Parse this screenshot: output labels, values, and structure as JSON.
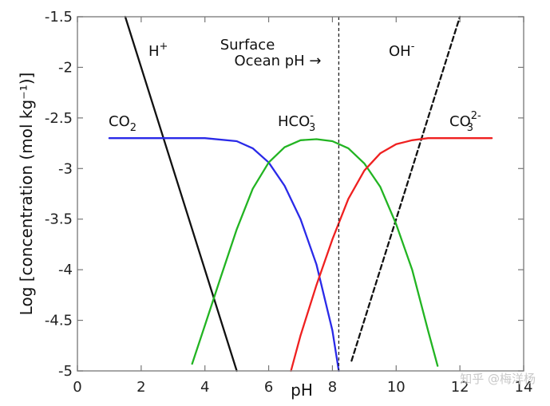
{
  "chart_data": {
    "type": "line",
    "title": "",
    "xlabel": "pH",
    "ylabel": "Log [concentration (mol kg⁻¹)]",
    "xlim": [
      0,
      14
    ],
    "ylim": [
      -5,
      -1.5
    ],
    "xticks": [
      0,
      2,
      4,
      6,
      8,
      10,
      12,
      14
    ],
    "xtick_labels": [
      "0",
      "2",
      "4",
      "6",
      "8",
      "10",
      "12",
      "14"
    ],
    "yticks": [
      -1.5,
      -2,
      -2.5,
      -3,
      -3.5,
      -4,
      -4.5,
      -5
    ],
    "ytick_labels": [
      "-1.5",
      "-2",
      "-2.5",
      "-3",
      "-3.5",
      "-4",
      "-4.5",
      "-5"
    ],
    "grid": false,
    "series": [
      {
        "name": "H⁺",
        "color": "#111111",
        "style": "solid",
        "x": [
          1.5,
          5.0
        ],
        "y": [
          -1.5,
          -5.0
        ]
      },
      {
        "name": "OH⁻",
        "color": "#111111",
        "style": "dashed",
        "x": [
          8.6,
          12.0
        ],
        "y": [
          -4.9,
          -1.5
        ]
      },
      {
        "name": "CO2",
        "color": "#2a2ae8",
        "style": "solid",
        "x": [
          1.0,
          4.0,
          5.0,
          5.5,
          6.0,
          6.5,
          7.0,
          7.5,
          8.0,
          8.2
        ],
        "y": [
          -2.7,
          -2.7,
          -2.73,
          -2.8,
          -2.94,
          -3.17,
          -3.5,
          -3.95,
          -4.6,
          -5.0
        ]
      },
      {
        "name": "HCO3-",
        "color": "#22b422",
        "style": "solid",
        "x": [
          3.6,
          4.0,
          4.5,
          5.0,
          5.5,
          6.0,
          6.5,
          7.0,
          7.5,
          8.0,
          8.5,
          9.0,
          9.5,
          10.0,
          10.5,
          11.0,
          11.3
        ],
        "y": [
          -4.93,
          -4.55,
          -4.07,
          -3.6,
          -3.2,
          -2.94,
          -2.79,
          -2.72,
          -2.71,
          -2.73,
          -2.8,
          -2.95,
          -3.18,
          -3.55,
          -4.0,
          -4.6,
          -4.95
        ]
      },
      {
        "name": "CO3 2-",
        "color": "#ef2020",
        "style": "solid",
        "x": [
          6.7,
          7.0,
          7.5,
          8.0,
          8.5,
          9.0,
          9.5,
          10.0,
          10.5,
          11.0,
          12.0,
          13.0
        ],
        "y": [
          -5.0,
          -4.65,
          -4.15,
          -3.7,
          -3.3,
          -3.02,
          -2.85,
          -2.76,
          -2.72,
          -2.7,
          -2.7,
          -2.7
        ]
      }
    ],
    "vline": {
      "x": 8.2,
      "style": "dashed",
      "color": "#222222"
    },
    "annotations": {
      "co2": {
        "base": "CO",
        "sub": "2",
        "sup": "",
        "color": "#2a2ae8"
      },
      "hco3": {
        "base": "HCO",
        "sub": "3",
        "sup": "-",
        "color": "#22b422"
      },
      "co3": {
        "base": "CO",
        "sub": "3",
        "sup": "2-",
        "color": "#ef2020"
      },
      "h": {
        "base": "H",
        "sup": "+",
        "color": "#111111"
      },
      "oh": {
        "base": "OH",
        "sup": "-",
        "color": "#111111"
      },
      "surface_line1": "Surface",
      "surface_line2": "Ocean pH →"
    }
  },
  "watermark": "知乎 @梅洋杨"
}
